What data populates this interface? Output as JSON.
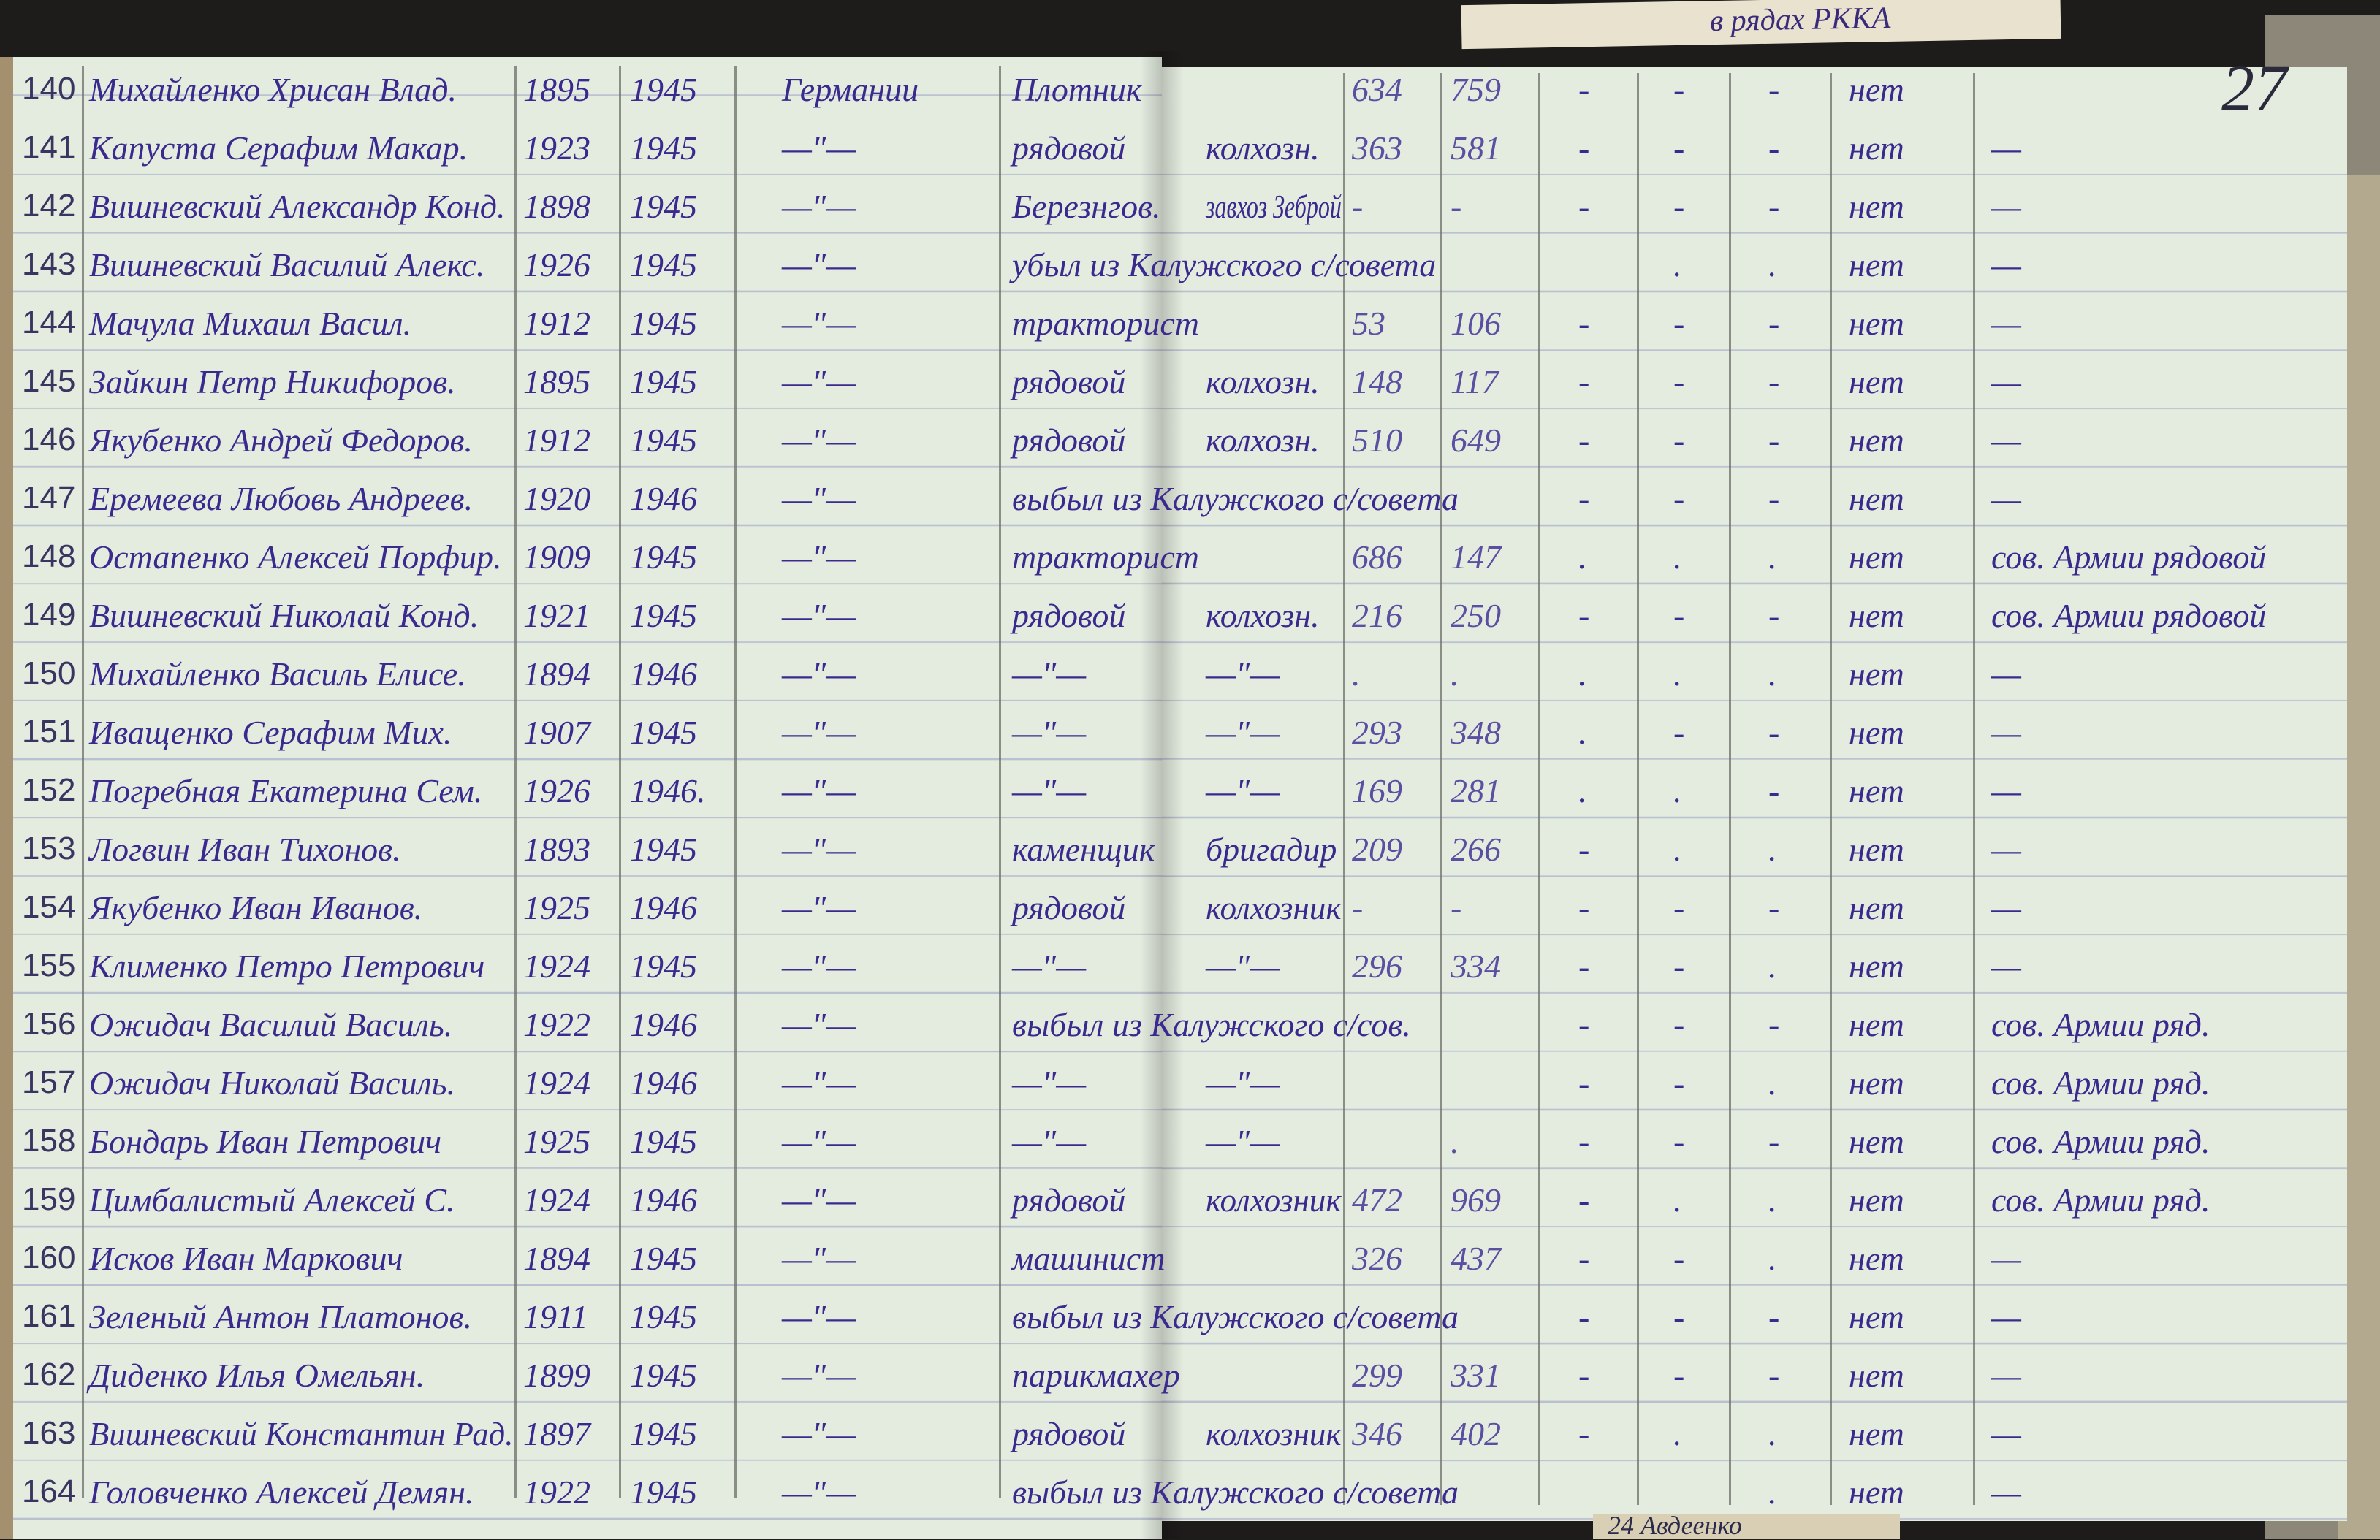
{
  "page_number": "27",
  "scrap_note": "в рядах РККА",
  "bottom_fragment": "24 Авдеенко",
  "ink_color": "#3b2a8e",
  "paper_color": "#e4ece0",
  "rows": [
    {
      "no": "140",
      "name": "Михайленко Хрисан Влад.",
      "born": "1895",
      "year": "1945",
      "from": "Германии",
      "pos": "Плотник",
      "role": "",
      "n1": "634",
      "n2": "759",
      "d1": "-",
      "d2": "-",
      "d3": "-",
      "net": "нет",
      "note": ""
    },
    {
      "no": "141",
      "name": "Капуста Серафим Макар.",
      "born": "1923",
      "year": "1945",
      "from": "—\"—",
      "pos": "рядовой",
      "role": "колхозн.",
      "n1": "363",
      "n2": "581",
      "d1": "-",
      "d2": "-",
      "d3": "-",
      "net": "нет",
      "note": "—"
    },
    {
      "no": "142",
      "name": "Вишневский Александр Конд.",
      "born": "1898",
      "year": "1945",
      "from": "—\"—",
      "pos": "Березнгов.",
      "role": "завхоз Зеброй",
      "n1": "-",
      "n2": "-",
      "d1": "-",
      "d2": "-",
      "d3": "-",
      "net": "нет",
      "note": "—"
    },
    {
      "no": "143",
      "name": "Вишневский Василий Алекс.",
      "born": "1926",
      "year": "1945",
      "from": "—\"—",
      "pos": "убыл из Калужского с/совета",
      "role": "",
      "n1": "",
      "n2": "",
      "d1": "",
      "d2": ".",
      "d3": ".",
      "net": "нет",
      "note": "—"
    },
    {
      "no": "144",
      "name": "Мачула Михаил Васил.",
      "born": "1912",
      "year": "1945",
      "from": "—\"—",
      "pos": "тракторист",
      "role": "",
      "n1": "53",
      "n2": "106",
      "d1": "-",
      "d2": "-",
      "d3": "-",
      "net": "нет",
      "note": "—"
    },
    {
      "no": "145",
      "name": "Зайкин Петр Никифоров.",
      "born": "1895",
      "year": "1945",
      "from": "—\"—",
      "pos": "рядовой",
      "role": "колхозн.",
      "n1": "148",
      "n2": "117",
      "d1": "-",
      "d2": "-",
      "d3": "-",
      "net": "нет",
      "note": "—"
    },
    {
      "no": "146",
      "name": "Якубенко Андрей Федоров.",
      "born": "1912",
      "year": "1945",
      "from": "—\"—",
      "pos": "рядовой",
      "role": "колхозн.",
      "n1": "510",
      "n2": "649",
      "d1": "-",
      "d2": "-",
      "d3": "-",
      "net": "нет",
      "note": "—"
    },
    {
      "no": "147",
      "name": "Еремеева Любовь Андреев.",
      "born": "1920",
      "year": "1946",
      "from": "—\"—",
      "pos": "выбыл из Калужского с/совета",
      "role": "",
      "n1": "",
      "n2": "",
      "d1": "-",
      "d2": "-",
      "d3": "-",
      "net": "нет",
      "note": "—"
    },
    {
      "no": "148",
      "name": "Остапенко Алексей Порфир.",
      "born": "1909",
      "year": "1945",
      "from": "—\"—",
      "pos": "тракторист",
      "role": "",
      "n1": "686",
      "n2": "147",
      "d1": ".",
      "d2": ".",
      "d3": ".",
      "net": "нет",
      "note": "сов. Армии рядовой"
    },
    {
      "no": "149",
      "name": "Вишневский Николай Конд.",
      "born": "1921",
      "year": "1945",
      "from": "—\"—",
      "pos": "рядовой",
      "role": "колхозн.",
      "n1": "216",
      "n2": "250",
      "d1": "-",
      "d2": "-",
      "d3": "-",
      "net": "нет",
      "note": "сов. Армии рядовой"
    },
    {
      "no": "150",
      "name": "Михайленко Василь Елисе.",
      "born": "1894",
      "year": "1946",
      "from": "—\"—",
      "pos": "—\"—",
      "role": "—\"—",
      "n1": ".",
      "n2": ".",
      "d1": ".",
      "d2": ".",
      "d3": ".",
      "net": "нет",
      "note": "—"
    },
    {
      "no": "151",
      "name": "Иващенко Серафим Мих.",
      "born": "1907",
      "year": "1945",
      "from": "—\"—",
      "pos": "—\"—",
      "role": "—\"—",
      "n1": "293",
      "n2": "348",
      "d1": ".",
      "d2": "-",
      "d3": "-",
      "net": "нет",
      "note": "—"
    },
    {
      "no": "152",
      "name": "Погребная Екатерина Сем.",
      "born": "1926",
      "year": "1946.",
      "from": "—\"—",
      "pos": "—\"—",
      "role": "—\"—",
      "n1": "169",
      "n2": "281",
      "d1": ".",
      "d2": ".",
      "d3": "-",
      "net": "нет",
      "note": "—"
    },
    {
      "no": "153",
      "name": "Логвин Иван Тихонов.",
      "born": "1893",
      "year": "1945",
      "from": "—\"—",
      "pos": "каменщик",
      "role": "бригадир",
      "n1": "209",
      "n2": "266",
      "d1": "-",
      "d2": ".",
      "d3": ".",
      "net": "нет",
      "note": "—"
    },
    {
      "no": "154",
      "name": "Якубенко Иван Иванов.",
      "born": "1925",
      "year": "1946",
      "from": "—\"—",
      "pos": "рядовой",
      "role": "колхозник",
      "n1": "-",
      "n2": "-",
      "d1": "-",
      "d2": "-",
      "d3": "-",
      "net": "нет",
      "note": "—"
    },
    {
      "no": "155",
      "name": "Клименко Петро Петрович",
      "born": "1924",
      "year": "1945",
      "from": "—\"—",
      "pos": "—\"—",
      "role": "—\"—",
      "n1": "296",
      "n2": "334",
      "d1": "-",
      "d2": "-",
      "d3": ".",
      "net": "нет",
      "note": "—"
    },
    {
      "no": "156",
      "name": "Ожидач Василий Василь.",
      "born": "1922",
      "year": "1946",
      "from": "—\"—",
      "pos": "выбыл из Калужского с/сов.",
      "role": "",
      "n1": "",
      "n2": "",
      "d1": "-",
      "d2": "-",
      "d3": "-",
      "net": "нет",
      "note": "сов. Армии ряд."
    },
    {
      "no": "157",
      "name": "Ожидач Николай Василь.",
      "born": "1924",
      "year": "1946",
      "from": "—\"—",
      "pos": "—\"—",
      "role": "—\"—",
      "n1": "",
      "n2": "",
      "d1": "-",
      "d2": "-",
      "d3": ".",
      "net": "нет",
      "note": "сов. Армии ряд."
    },
    {
      "no": "158",
      "name": "Бондарь Иван Петрович",
      "born": "1925",
      "year": "1945",
      "from": "—\"—",
      "pos": "—\"—",
      "role": "—\"—",
      "n1": "",
      "n2": ".",
      "d1": "-",
      "d2": "-",
      "d3": "-",
      "net": "нет",
      "note": "сов. Армии ряд."
    },
    {
      "no": "159",
      "name": "Цимбалистый Алексей С.",
      "born": "1924",
      "year": "1946",
      "from": "—\"—",
      "pos": "рядовой",
      "role": "колхозник",
      "n1": "472",
      "n2": "969",
      "d1": "-",
      "d2": ".",
      "d3": ".",
      "net": "нет",
      "note": "сов. Армии ряд."
    },
    {
      "no": "160",
      "name": "Исков Иван Маркович",
      "born": "1894",
      "year": "1945",
      "from": "—\"—",
      "pos": "машинист",
      "role": "",
      "n1": "326",
      "n2": "437",
      "d1": "-",
      "d2": "-",
      "d3": ".",
      "net": "нет",
      "note": "—"
    },
    {
      "no": "161",
      "name": "Зеленый Антон Платонов.",
      "born": "1911",
      "year": "1945",
      "from": "—\"—",
      "pos": "выбыл из Калужского с/совета",
      "role": "",
      "n1": "",
      "n2": "",
      "d1": "-",
      "d2": "-",
      "d3": "-",
      "net": "нет",
      "note": "—"
    },
    {
      "no": "162",
      "name": "Диденко Илья Омельян.",
      "born": "1899",
      "year": "1945",
      "from": "—\"—",
      "pos": "парикмахер",
      "role": "",
      "n1": "299",
      "n2": "331",
      "d1": "-",
      "d2": "-",
      "d3": "-",
      "net": "нет",
      "note": "—"
    },
    {
      "no": "163",
      "name": "Вишневский Константин Рад.",
      "born": "1897",
      "year": "1945",
      "from": "—\"—",
      "pos": "рядовой",
      "role": "колхозник",
      "n1": "346",
      "n2": "402",
      "d1": "-",
      "d2": ".",
      "d3": ".",
      "net": "нет",
      "note": "—"
    },
    {
      "no": "164",
      "name": "Головченко Алексей Демян.",
      "born": "1922",
      "year": "1945",
      "from": "—\"—",
      "pos": "выбыл из Калужского с/совета",
      "role": "",
      "n1": "",
      "n2": "",
      "d1": "",
      "d2": "",
      "d3": ".",
      "net": "нет",
      "note": "—"
    }
  ]
}
